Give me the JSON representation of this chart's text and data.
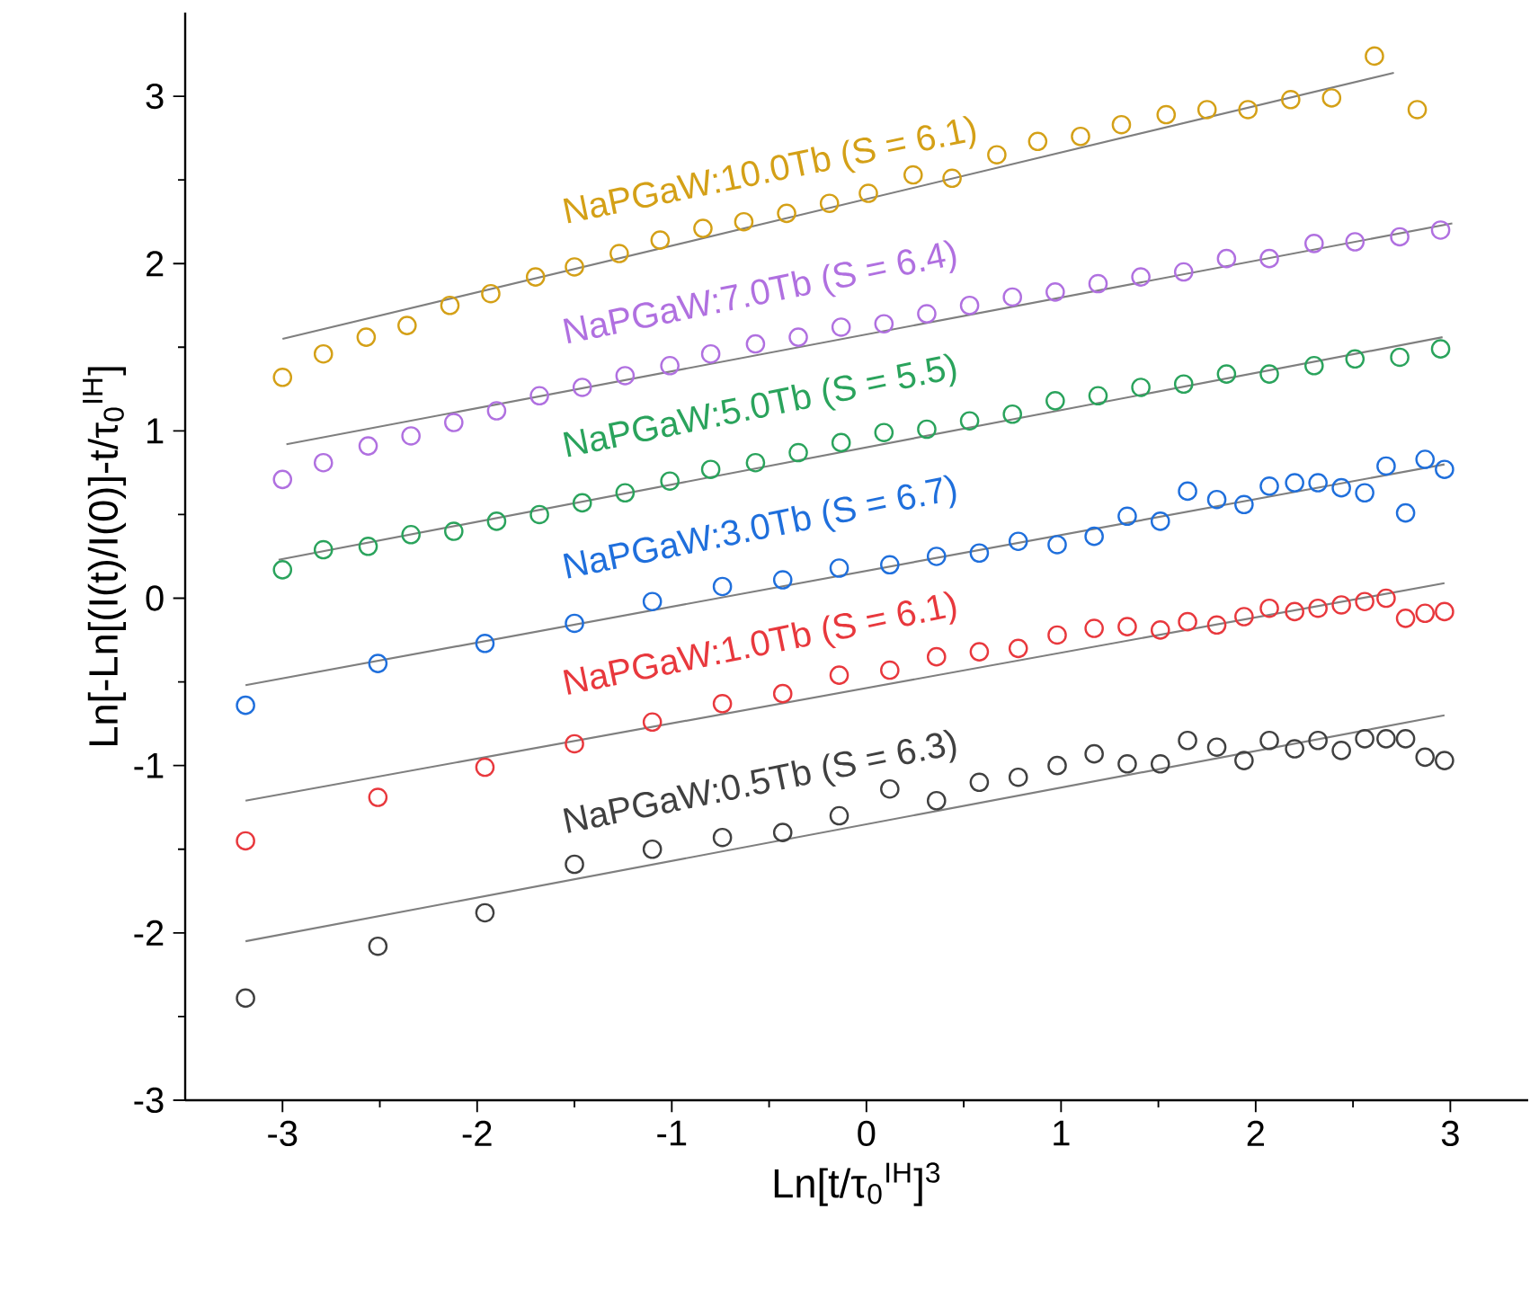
{
  "chart_data": {
    "type": "scatter",
    "xlabel": "Ln[t/τ$_{0}$$^{IH}$]$^{3}$",
    "ylabel": "Ln[-Ln[(I(t)/I(0)]-t/τ$_{0}$$^{IH}$]",
    "xlim": [
      -3.5,
      3.4
    ],
    "ylim": [
      -3,
      3.5
    ],
    "xticks": [
      -3,
      -2,
      -1,
      0,
      1,
      2,
      3
    ],
    "yticks": [
      -3,
      -2,
      -1,
      0,
      1,
      2,
      3
    ],
    "grid": false,
    "legend": false,
    "series": [
      {
        "name": "NaPGaW:0.5Tb (S = 6.3)",
        "marker": "circle",
        "color": "#404040",
        "x": [
          -3.19,
          -2.51,
          -1.96,
          -1.5,
          -1.1,
          -0.74,
          -0.43,
          -0.14,
          0.12,
          0.36,
          0.58,
          0.78,
          0.98,
          1.17,
          1.34,
          1.51,
          1.65,
          1.8,
          1.94,
          2.07,
          2.2,
          2.32,
          2.44,
          2.56,
          2.67,
          2.77,
          2.87,
          2.97
        ],
        "values": [
          -2.39,
          -2.08,
          -1.88,
          -1.59,
          -1.5,
          -1.43,
          -1.4,
          -1.3,
          -1.14,
          -1.21,
          -1.1,
          -1.07,
          -1.0,
          -0.93,
          -0.99,
          -0.99,
          -0.85,
          -0.89,
          -0.97,
          -0.85,
          -0.9,
          -0.85,
          -0.91,
          -0.84,
          -0.84,
          -0.84,
          -0.95,
          -0.97
        ]
      },
      {
        "name": "NaPGaW:1.0Tb (S = 6.1)",
        "marker": "circle",
        "color": "#e8383d",
        "x": [
          -3.19,
          -2.51,
          -1.96,
          -1.5,
          -1.1,
          -0.74,
          -0.43,
          -0.14,
          0.12,
          0.36,
          0.58,
          0.78,
          0.98,
          1.17,
          1.34,
          1.51,
          1.65,
          1.8,
          1.94,
          2.07,
          2.2,
          2.32,
          2.44,
          2.56,
          2.67,
          2.77,
          2.87,
          2.97
        ],
        "values": [
          -1.45,
          -1.19,
          -1.01,
          -0.87,
          -0.74,
          -0.63,
          -0.57,
          -0.46,
          -0.43,
          -0.35,
          -0.32,
          -0.3,
          -0.22,
          -0.18,
          -0.17,
          -0.19,
          -0.14,
          -0.16,
          -0.11,
          -0.06,
          -0.08,
          -0.06,
          -0.04,
          -0.02,
          0.0,
          -0.12,
          -0.09,
          -0.08
        ]
      },
      {
        "name": "NaPGaW:3.0Tb (S = 6.7)",
        "marker": "circle",
        "color": "#1f6fdc",
        "x": [
          -3.19,
          -2.51,
          -1.96,
          -1.5,
          -1.1,
          -0.74,
          -0.43,
          -0.14,
          0.12,
          0.36,
          0.58,
          0.78,
          0.98,
          1.17,
          1.34,
          1.51,
          1.65,
          1.8,
          1.94,
          2.07,
          2.2,
          2.32,
          2.44,
          2.56,
          2.67,
          2.77,
          2.87,
          2.97
        ],
        "values": [
          -0.64,
          -0.39,
          -0.27,
          -0.15,
          -0.02,
          0.07,
          0.11,
          0.18,
          0.2,
          0.25,
          0.27,
          0.34,
          0.32,
          0.37,
          0.49,
          0.46,
          0.64,
          0.59,
          0.56,
          0.67,
          0.69,
          0.69,
          0.66,
          0.63,
          0.79,
          0.51,
          0.83,
          0.77
        ]
      },
      {
        "name": "NaPGaW:5.0Tb (S = 5.5)",
        "marker": "circle",
        "color": "#2aa35c",
        "x": [
          -3.0,
          -2.79,
          -2.56,
          -2.34,
          -2.12,
          -1.9,
          -1.68,
          -1.46,
          -1.24,
          -1.01,
          -0.8,
          -0.57,
          -0.35,
          -0.13,
          0.09,
          0.31,
          0.53,
          0.75,
          0.97,
          1.19,
          1.41,
          1.63,
          1.85,
          2.07,
          2.3,
          2.51,
          2.74,
          2.95
        ],
        "values": [
          0.17,
          0.29,
          0.31,
          0.38,
          0.4,
          0.46,
          0.5,
          0.57,
          0.63,
          0.7,
          0.77,
          0.81,
          0.87,
          0.93,
          0.99,
          1.01,
          1.06,
          1.1,
          1.18,
          1.21,
          1.26,
          1.28,
          1.34,
          1.34,
          1.39,
          1.43,
          1.44,
          1.49
        ]
      },
      {
        "name": "NaPGaW:7.0Tb (S = 6.4)",
        "marker": "circle",
        "color": "#b070e0",
        "x": [
          -3.0,
          -2.79,
          -2.56,
          -2.34,
          -2.12,
          -1.9,
          -1.68,
          -1.46,
          -1.24,
          -1.01,
          -0.8,
          -0.57,
          -0.35,
          -0.13,
          0.09,
          0.31,
          0.53,
          0.75,
          0.97,
          1.19,
          1.41,
          1.63,
          1.85,
          2.07,
          2.3,
          2.51,
          2.74,
          2.95
        ],
        "values": [
          0.71,
          0.81,
          0.91,
          0.97,
          1.05,
          1.12,
          1.21,
          1.26,
          1.33,
          1.39,
          1.46,
          1.52,
          1.56,
          1.62,
          1.64,
          1.7,
          1.75,
          1.8,
          1.83,
          1.88,
          1.92,
          1.95,
          2.03,
          2.03,
          2.12,
          2.13,
          2.16,
          2.2
        ]
      },
      {
        "name": "NaPGaW:10.0Tb (S = 6.1)",
        "marker": "circle",
        "color": "#d4a017",
        "x": [
          -3.0,
          -2.79,
          -2.57,
          -2.36,
          -2.14,
          -1.93,
          -1.7,
          -1.5,
          -1.27,
          -1.06,
          -0.84,
          -0.63,
          -0.41,
          -0.19,
          0.01,
          0.24,
          0.44,
          0.67,
          0.88,
          1.1,
          1.31,
          1.54,
          1.75,
          1.96,
          2.18,
          2.39,
          2.61,
          2.83
        ],
        "values": [
          1.32,
          1.46,
          1.56,
          1.63,
          1.75,
          1.82,
          1.92,
          1.98,
          2.06,
          2.14,
          2.21,
          2.25,
          2.3,
          2.36,
          2.42,
          2.53,
          2.51,
          2.65,
          2.73,
          2.76,
          2.83,
          2.89,
          2.92,
          2.92,
          2.98,
          2.99,
          3.24,
          2.92
        ]
      },
      {
        "type": "line",
        "color": "#7f7f7f",
        "x": [
          -3.19,
          2.97
        ],
        "values": [
          -2.05,
          -0.7
        ]
      },
      {
        "type": "line",
        "color": "#7f7f7f",
        "x": [
          -3.19,
          2.97
        ],
        "values": [
          -1.21,
          0.09
        ]
      },
      {
        "type": "line",
        "color": "#7f7f7f",
        "x": [
          -3.19,
          2.97
        ],
        "values": [
          -0.52,
          0.8
        ]
      },
      {
        "type": "line",
        "color": "#7f7f7f",
        "x": [
          -3.02,
          2.96
        ],
        "values": [
          0.23,
          1.56
        ]
      },
      {
        "type": "line",
        "color": "#7f7f7f",
        "x": [
          -2.98,
          3.01
        ],
        "values": [
          0.92,
          2.24
        ]
      },
      {
        "type": "line",
        "color": "#7f7f7f",
        "x": [
          -3.0,
          2.71
        ],
        "values": [
          1.55,
          3.14
        ]
      }
    ]
  }
}
